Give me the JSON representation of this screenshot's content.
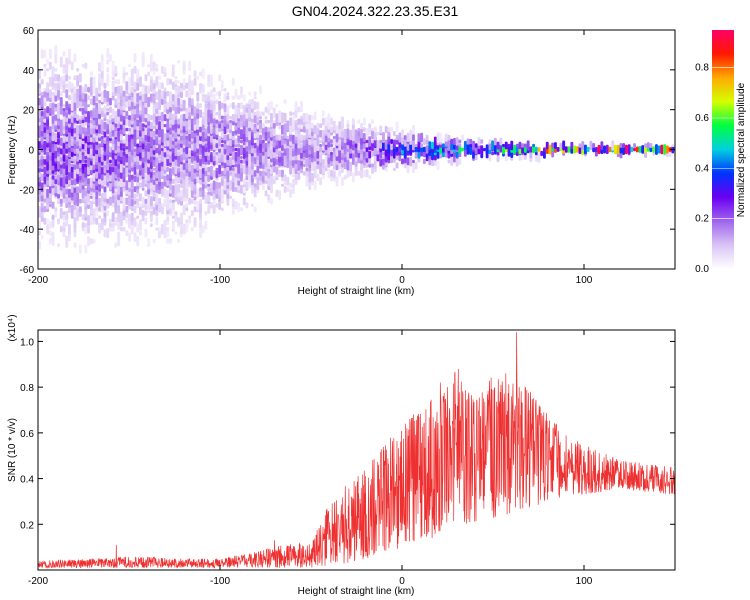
{
  "figure_title": "GN04.2024.322.23.35.E31",
  "chart_data": [
    {
      "type": "heatmap",
      "title": "GN04.2024.322.23.35.E31",
      "xlabel": "Height of straight line (km)",
      "ylabel": "Frequency (Hz)",
      "xlim": [
        -200,
        150
      ],
      "ylim": [
        -60,
        60
      ],
      "x_ticks": [
        -200,
        -100,
        0,
        100
      ],
      "y_ticks": [
        -60,
        -40,
        -20,
        0,
        20,
        40,
        60
      ],
      "colorbar": {
        "label": "Normalized spectral amplitude",
        "range": [
          0,
          0.95
        ],
        "ticks": [
          0.0,
          0.2,
          0.4,
          0.6,
          0.8
        ],
        "colormap": [
          "#ffffff",
          "#d9c4f5",
          "#a066ee",
          "#6a00f0",
          "#0033ff",
          "#00d0e0",
          "#00ff40",
          "#d4ff00",
          "#ffaa00",
          "#ff1a00",
          "#ff0066"
        ]
      },
      "spectral_profile": {
        "x": [
          -200,
          -180,
          -150,
          -120,
          -100,
          -80,
          -60,
          -40,
          -20,
          0,
          20,
          40,
          60,
          80,
          100,
          120,
          150
        ],
        "half_width_hz": [
          60,
          60,
          60,
          58,
          45,
          38,
          30,
          22,
          18,
          12,
          8,
          6,
          5,
          4,
          3,
          3,
          2
        ],
        "peak_amplitude": [
          0.25,
          0.25,
          0.22,
          0.2,
          0.22,
          0.2,
          0.18,
          0.2,
          0.25,
          0.4,
          0.5,
          0.55,
          0.6,
          0.7,
          0.8,
          0.85,
          0.95
        ]
      }
    },
    {
      "type": "line",
      "xlabel": "Height of straight line (km)",
      "ylabel": "SNR (10 * v/v)",
      "y_scale_label": "(x10⁴)",
      "xlim": [
        -200,
        150
      ],
      "ylim": [
        0,
        1.05
      ],
      "x_ticks": [
        -200,
        -100,
        0,
        100
      ],
      "y_ticks": [
        0.2,
        0.4,
        0.6,
        0.8,
        1.0
      ],
      "color": "#ee3030",
      "envelope": {
        "x": [
          -200,
          -170,
          -150,
          -120,
          -100,
          -80,
          -70,
          -60,
          -50,
          -40,
          -30,
          -20,
          -10,
          0,
          10,
          20,
          30,
          40,
          50,
          60,
          70,
          80,
          90,
          100,
          120,
          150
        ],
        "lower": [
          0.01,
          0.01,
          0.01,
          0.01,
          0.01,
          0.01,
          0.01,
          0.01,
          0.01,
          0.02,
          0.03,
          0.05,
          0.07,
          0.1,
          0.12,
          0.15,
          0.2,
          0.2,
          0.22,
          0.25,
          0.27,
          0.3,
          0.32,
          0.33,
          0.35,
          0.33
        ],
        "upper": [
          0.04,
          0.05,
          0.06,
          0.05,
          0.05,
          0.08,
          0.1,
          0.12,
          0.12,
          0.3,
          0.38,
          0.45,
          0.55,
          0.65,
          0.7,
          0.78,
          0.88,
          0.78,
          0.85,
          0.82,
          0.8,
          0.68,
          0.6,
          0.55,
          0.48,
          0.45
        ]
      },
      "peaks": [
        {
          "x": 63,
          "y": 1.04
        },
        {
          "x": 31,
          "y": 0.88
        },
        {
          "x": 57,
          "y": 0.86
        },
        {
          "x": 21,
          "y": 0.82
        },
        {
          "x": -157,
          "y": 0.11
        },
        {
          "x": -70,
          "y": 0.13
        }
      ]
    }
  ]
}
